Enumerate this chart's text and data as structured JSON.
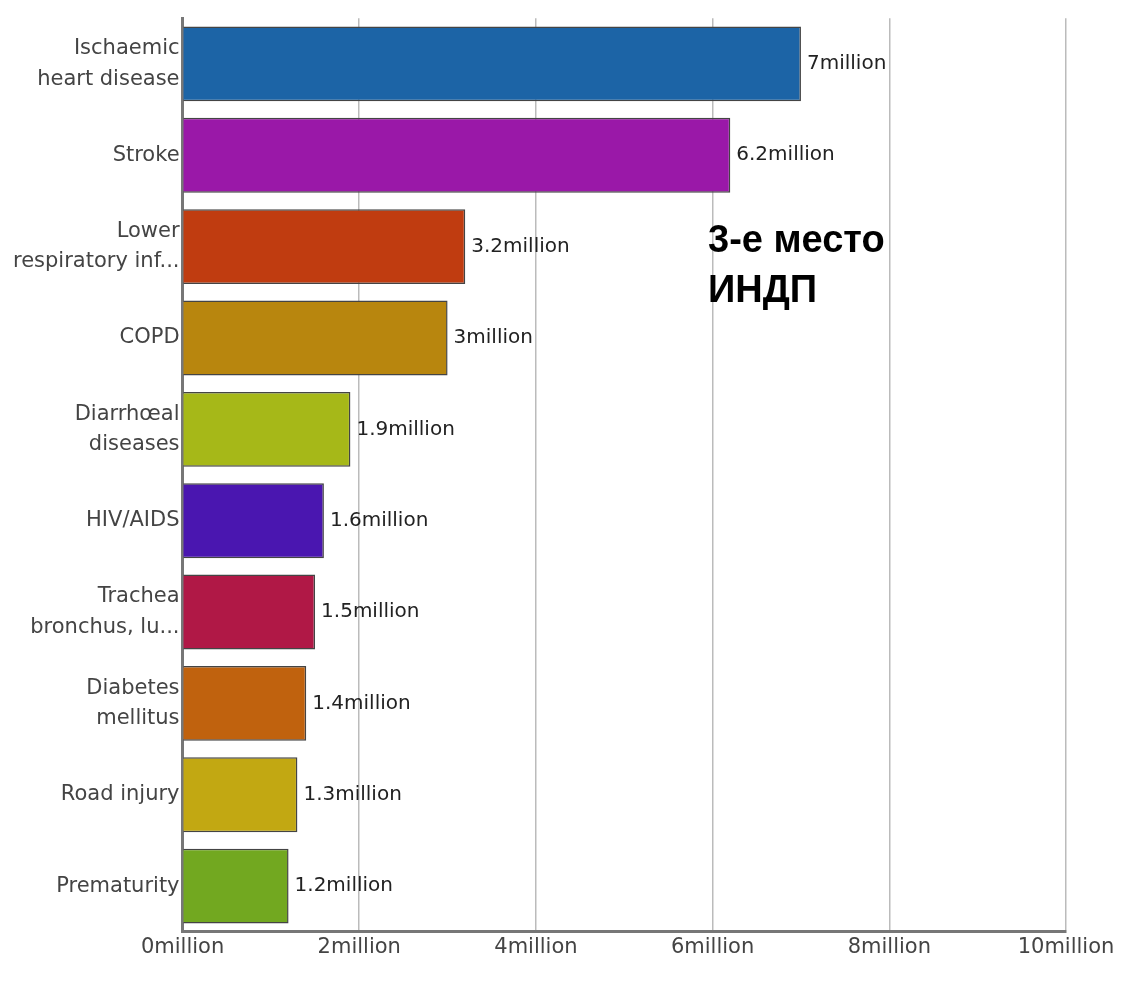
{
  "chart_data": {
    "type": "bar",
    "orientation": "horizontal",
    "categories": [
      "Ischaemic\nheart disease",
      "Stroke",
      "Lower\nrespiratory inf...",
      "COPD",
      "Diarrhœal\ndiseases",
      "HIV/AIDS",
      "Trachea\nbronchus, lu...",
      "Diabetes\nmellitus",
      "Road injury",
      "Prematurity"
    ],
    "values": [
      7,
      6.2,
      3.2,
      3,
      1.9,
      1.6,
      1.5,
      1.4,
      1.3,
      1.2
    ],
    "value_labels": [
      "7million",
      "6.2million",
      "3.2million",
      "3million",
      "1.9million",
      "1.6million",
      "1.5million",
      "1.4million",
      "1.3million",
      "1.2million"
    ],
    "colors": [
      "#1c64a6",
      "#9a18a8",
      "#c03c10",
      "#b8860e",
      "#a6b818",
      "#4a16b0",
      "#b01846",
      "#c0620e",
      "#c2a812",
      "#72a820"
    ],
    "xlim": [
      0,
      10
    ],
    "xticks": [
      {
        "value": 0,
        "label": "0million"
      },
      {
        "value": 2,
        "label": "2million"
      },
      {
        "value": 4,
        "label": "4million"
      },
      {
        "value": 6,
        "label": "6million"
      },
      {
        "value": 8,
        "label": "8million"
      },
      {
        "value": 10,
        "label": "10million"
      }
    ],
    "grid": "x",
    "annotations": [
      "3-е место\nИНДП"
    ]
  }
}
